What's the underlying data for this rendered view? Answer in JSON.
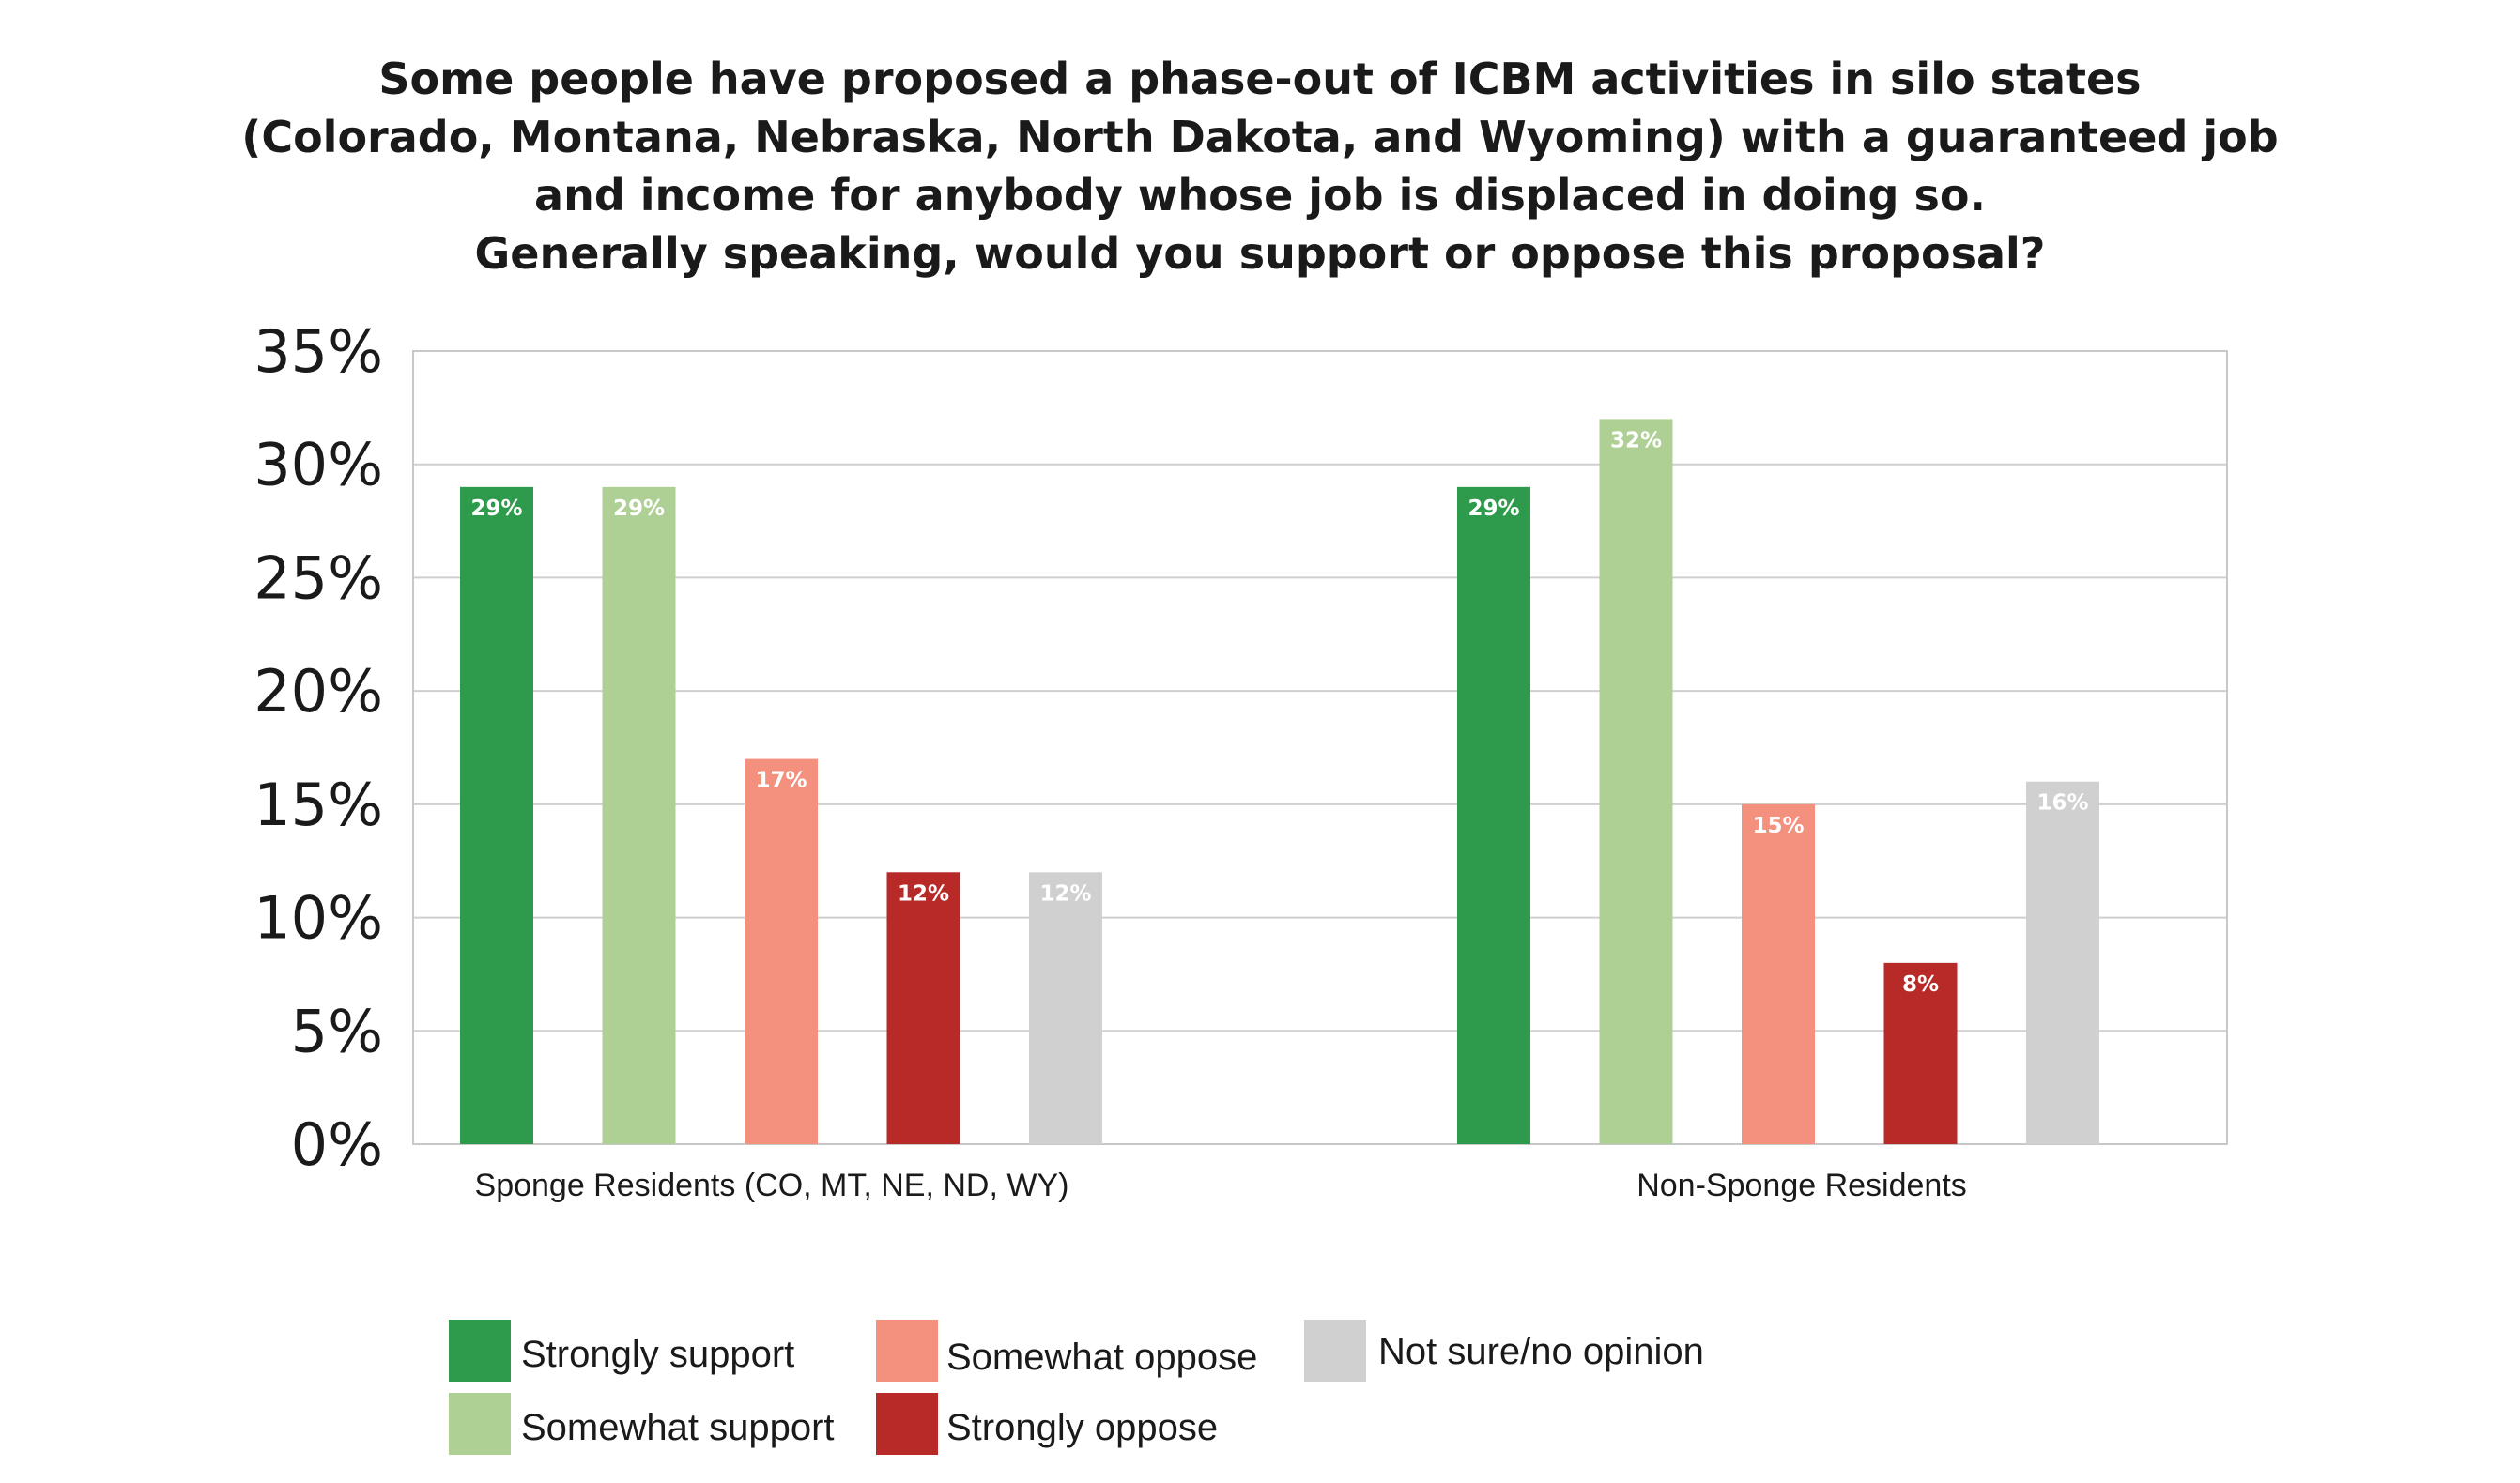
{
  "chart_data": {
    "type": "bar",
    "title_lines": [
      "Some people have proposed a phase-out of ICBM activities in silo states",
      "(Colorado, Montana, Nebraska, North Dakota, and Wyoming) with a guaranteed job",
      "and income for anybody whose job is displaced in doing so.",
      "Generally speaking, would you support or oppose this proposal?"
    ],
    "categories": [
      "Sponge Residents (CO, MT, NE, ND, WY)",
      "Non-Sponge Residents"
    ],
    "series": [
      {
        "name": "Strongly support",
        "color": "#2e9a4c",
        "values": [
          29,
          29
        ],
        "labels": [
          "29%",
          "29%"
        ]
      },
      {
        "name": "Somewhat support",
        "color": "#afd095",
        "values": [
          29,
          32
        ],
        "labels": [
          "29%",
          "32%"
        ]
      },
      {
        "name": "Somewhat oppose",
        "color": "#f4907e",
        "values": [
          17,
          15
        ],
        "labels": [
          "17%",
          "15%"
        ]
      },
      {
        "name": "Strongly oppose",
        "color": "#b72a28",
        "values": [
          12,
          8
        ],
        "labels": [
          "12%",
          "8%"
        ]
      },
      {
        "name": "Not sure/no opinion",
        "color": "#d0d0d0",
        "values": [
          12,
          16
        ],
        "labels": [
          "12%",
          "16%"
        ]
      }
    ],
    "ylim": [
      0,
      35
    ],
    "yticks": [
      0,
      5,
      10,
      15,
      20,
      25,
      30,
      35
    ],
    "ytick_labels": [
      "0%",
      "5%",
      "10%",
      "15%",
      "20%",
      "25%",
      "30%",
      "35%"
    ],
    "xlabel": "",
    "ylabel": "",
    "grid": true,
    "legend_position": "bottom"
  }
}
